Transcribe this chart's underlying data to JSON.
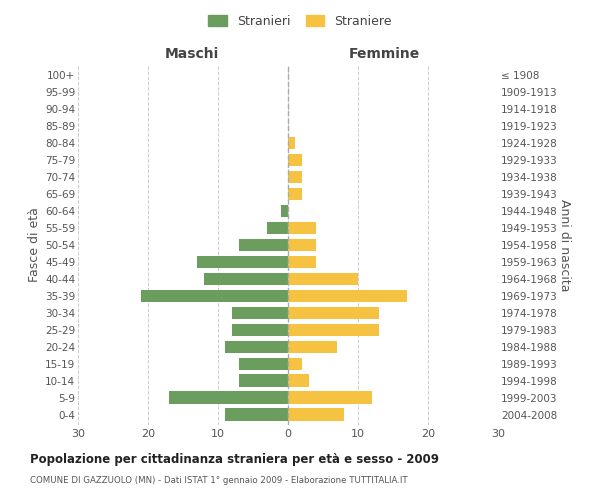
{
  "age_groups": [
    "0-4",
    "5-9",
    "10-14",
    "15-19",
    "20-24",
    "25-29",
    "30-34",
    "35-39",
    "40-44",
    "45-49",
    "50-54",
    "55-59",
    "60-64",
    "65-69",
    "70-74",
    "75-79",
    "80-84",
    "85-89",
    "90-94",
    "95-99",
    "100+"
  ],
  "birth_years": [
    "2004-2008",
    "1999-2003",
    "1994-1998",
    "1989-1993",
    "1984-1988",
    "1979-1983",
    "1974-1978",
    "1969-1973",
    "1964-1968",
    "1959-1963",
    "1954-1958",
    "1949-1953",
    "1944-1948",
    "1939-1943",
    "1934-1938",
    "1929-1933",
    "1924-1928",
    "1919-1923",
    "1914-1918",
    "1909-1913",
    "≤ 1908"
  ],
  "maschi": [
    9,
    17,
    7,
    7,
    9,
    8,
    8,
    21,
    12,
    13,
    7,
    3,
    1,
    0,
    0,
    0,
    0,
    0,
    0,
    0,
    0
  ],
  "femmine": [
    8,
    12,
    3,
    2,
    7,
    13,
    13,
    17,
    10,
    4,
    4,
    4,
    0,
    2,
    2,
    2,
    1,
    0,
    0,
    0,
    0
  ],
  "color_maschi": "#6b9e5e",
  "color_femmine": "#f5c242",
  "title": "Popolazione per cittadinanza straniera per età e sesso - 2009",
  "subtitle": "COMUNE DI GAZZUOLO (MN) - Dati ISTAT 1° gennaio 2009 - Elaborazione TUTTITALIA.IT",
  "ylabel_left": "Fasce di età",
  "ylabel_right": "Anni di nascita",
  "label_maschi": "Maschi",
  "label_femmine": "Femmine",
  "legend_maschi": "Stranieri",
  "legend_femmine": "Straniere",
  "xlim": 30,
  "bg_color": "#ffffff",
  "grid_color": "#cccccc",
  "bar_height": 0.75
}
